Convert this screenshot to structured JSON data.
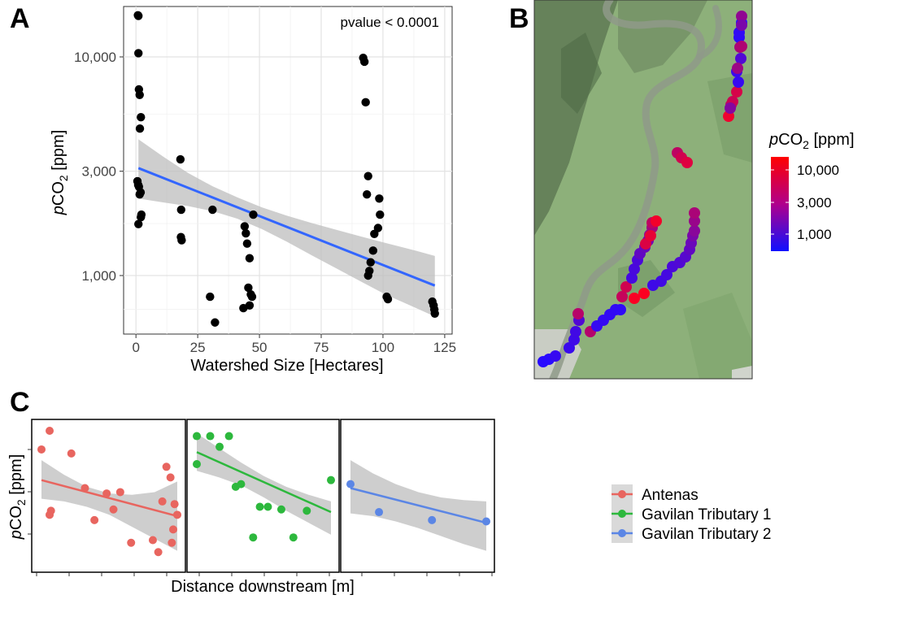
{
  "figure": {
    "panels": [
      "A",
      "B",
      "C"
    ]
  },
  "chart_data": [
    {
      "panel": "A",
      "type": "scatter",
      "xlabel": "Watershed Size [Hectares]",
      "ylabel_italic": "p",
      "ylabel_main": "CO",
      "ylabel_sub": "2",
      "ylabel_unit": " [ppm]",
      "annotation": "pvalue < 0.0001",
      "y_scale": "log",
      "xlim": [
        -5,
        128
      ],
      "ylim": [
        540,
        17000
      ],
      "x_ticks": [
        0,
        25,
        50,
        75,
        100,
        125
      ],
      "x_tick_labels": [
        "0",
        "25",
        "50",
        "75",
        "100",
        "125"
      ],
      "y_ticks": [
        1000,
        3000,
        10000
      ],
      "y_tick_labels": [
        "1,000",
        "3,000",
        "10,000"
      ],
      "grid": true,
      "points_color": "#000000",
      "fit_color": "#3366ff",
      "ribbon_color": "#bdbdbd",
      "x": [
        0.8,
        1.0,
        1.0,
        1.2,
        1.5,
        1.6,
        2.0,
        0.6,
        0.9,
        1.2,
        1.5,
        1.9,
        2.2,
        2.0,
        1.0,
        18,
        18.3,
        18.2,
        18.5,
        31,
        30,
        32,
        44,
        44.5,
        45,
        46,
        45.5,
        47,
        46.5,
        47.5,
        43.5,
        46,
        92,
        92.5,
        93,
        94,
        93.5,
        98.5,
        98.8,
        98,
        96.5,
        96,
        95,
        94.5,
        94,
        101.5,
        102,
        120,
        120.5,
        120.8,
        121
      ],
      "y": [
        15500,
        15400,
        10400,
        7100,
        6700,
        4700,
        5300,
        2700,
        2600,
        2550,
        2350,
        2400,
        1900,
        1850,
        1720,
        3400,
        2000,
        1500,
        1450,
        2000,
        800,
        610,
        1680,
        1560,
        1400,
        1200,
        880,
        800,
        820,
        1900,
        710,
        730,
        9900,
        9500,
        6200,
        2850,
        2350,
        2250,
        1900,
        1650,
        1550,
        1300,
        1150,
        1050,
        1000,
        800,
        780,
        760,
        730,
        700,
        670
      ],
      "fit_x": [
        1,
        121
      ],
      "fit_y": [
        3100,
        900
      ],
      "ribbon_upper": [
        4200,
        3500,
        2950,
        2560,
        2280,
        2050,
        1880,
        1740,
        1620,
        1510,
        1410,
        1320,
        1230
      ],
      "ribbon_lower": [
        2250,
        2160,
        2080,
        1970,
        1820,
        1630,
        1430,
        1240,
        1080,
        940,
        820,
        730,
        650
      ],
      "ribbon_x": [
        1,
        11,
        21,
        31,
        41,
        51,
        61,
        71,
        81,
        91,
        101,
        111,
        121
      ]
    },
    {
      "panel": "B",
      "type": "map",
      "colorbar_title_italic": "p",
      "colorbar_title_main": "CO",
      "colorbar_title_sub": "2",
      "colorbar_title_unit": " [ppm]",
      "colorbar_labels": [
        "10,000",
        "3,000",
        "1,000"
      ],
      "colorbar_colors": [
        "#ff0000",
        "#0000ff"
      ],
      "color_scale": "log",
      "color_range": [
        750,
        13000
      ],
      "points": [
        {
          "value": 700
        },
        {
          "value": 720
        },
        {
          "value": 900
        },
        {
          "value": 950
        },
        {
          "value": 1000
        },
        {
          "value": 1050
        },
        {
          "value": 1300
        },
        {
          "value": 5000
        },
        {
          "value": 4800
        },
        {
          "value": 900
        },
        {
          "value": 880
        },
        {
          "value": 860
        },
        {
          "value": 850
        },
        {
          "value": 830
        },
        {
          "value": 6000
        },
        {
          "value": 7000
        },
        {
          "value": 1100
        },
        {
          "value": 1150
        },
        {
          "value": 1200
        },
        {
          "value": 1600
        },
        {
          "value": 1700
        },
        {
          "value": 2000
        },
        {
          "value": 3000
        },
        {
          "value": 3800
        },
        {
          "value": 5500
        },
        {
          "value": 8000
        },
        {
          "value": 9500
        },
        {
          "value": 11000
        },
        {
          "value": 12000
        },
        {
          "value": 12500
        },
        {
          "value": 1000
        },
        {
          "value": 1050
        },
        {
          "value": 1100
        },
        {
          "value": 1200
        },
        {
          "value": 1300
        },
        {
          "value": 1400
        },
        {
          "value": 1600
        },
        {
          "value": 1800
        },
        {
          "value": 2200
        },
        {
          "value": 2700
        },
        {
          "value": 3300
        },
        {
          "value": 4200
        },
        {
          "value": 5500
        },
        {
          "value": 7000
        },
        {
          "value": 8500
        },
        {
          "value": 10500
        },
        {
          "value": 5200
        },
        {
          "value": 6500
        },
        {
          "value": 7500
        },
        {
          "value": 900
        },
        {
          "value": 950
        },
        {
          "value": 1300
        },
        {
          "value": 4000
        },
        {
          "value": 800
        },
        {
          "value": 760
        },
        {
          "value": 3000
        },
        {
          "value": 2500
        },
        {
          "value": 3500
        },
        {
          "value": 4500
        },
        {
          "value": 850
        },
        {
          "value": 2200
        }
      ]
    },
    {
      "panel": "C",
      "type": "scatter",
      "xlabel": "Distance downstream [m]",
      "ylabel_italic": "p",
      "ylabel_main": "CO",
      "ylabel_sub": "2",
      "ylabel_unit": " [ppm]",
      "facets": 3,
      "series": [
        {
          "name": "Antenas",
          "color": "#e8655f",
          "x": [
            0.0,
            0.06,
            0.07,
            0.06,
            0.22,
            0.32,
            0.39,
            0.48,
            0.53,
            0.58,
            0.66,
            0.82,
            0.86,
            0.89,
            0.92,
            0.95,
            0.97,
            0.98,
            1.0,
            0.96
          ],
          "y": [
            0.86,
            1.0,
            0.4,
            0.37,
            0.83,
            0.57,
            0.33,
            0.53,
            0.41,
            0.54,
            0.16,
            0.18,
            0.09,
            0.47,
            0.73,
            0.65,
            0.26,
            0.45,
            0.37,
            0.16
          ],
          "fit": [
            0.63,
            0.36
          ],
          "ribbon_upper": [
            0.78,
            0.67,
            0.58,
            0.53,
            0.52,
            0.54,
            0.62
          ],
          "ribbon_lower": [
            0.49,
            0.47,
            0.43,
            0.37,
            0.28,
            0.19,
            0.1
          ]
        },
        {
          "name": "Gavilan Tributary 1",
          "color": "#2db83d",
          "x": [
            0.0,
            0.0,
            0.1,
            0.17,
            0.24,
            0.29,
            0.33,
            0.42,
            0.47,
            0.53,
            0.63,
            0.72,
            0.82,
            1.0
          ],
          "y": [
            0.96,
            0.75,
            0.96,
            0.88,
            0.96,
            0.58,
            0.6,
            0.2,
            0.43,
            0.43,
            0.41,
            0.2,
            0.4,
            0.63
          ],
          "fit": [
            0.84,
            0.39
          ],
          "ribbon_upper": [
            0.98,
            0.87,
            0.76,
            0.66,
            0.58,
            0.52,
            0.47
          ],
          "ribbon_lower": [
            0.7,
            0.65,
            0.59,
            0.5,
            0.4,
            0.31,
            0.22
          ]
        },
        {
          "name": "Gavilan Tributary 2",
          "color": "#5b86e5",
          "x": [
            0.0,
            0.21,
            0.6,
            1.0
          ],
          "y": [
            0.6,
            0.39,
            0.33,
            0.32
          ],
          "fit": [
            0.57,
            0.31
          ],
          "ribbon_upper": [
            0.78,
            0.68,
            0.6,
            0.54,
            0.5,
            0.48,
            0.47
          ],
          "ribbon_lower": [
            0.38,
            0.36,
            0.32,
            0.27,
            0.21,
            0.15,
            0.1
          ]
        }
      ]
    }
  ]
}
